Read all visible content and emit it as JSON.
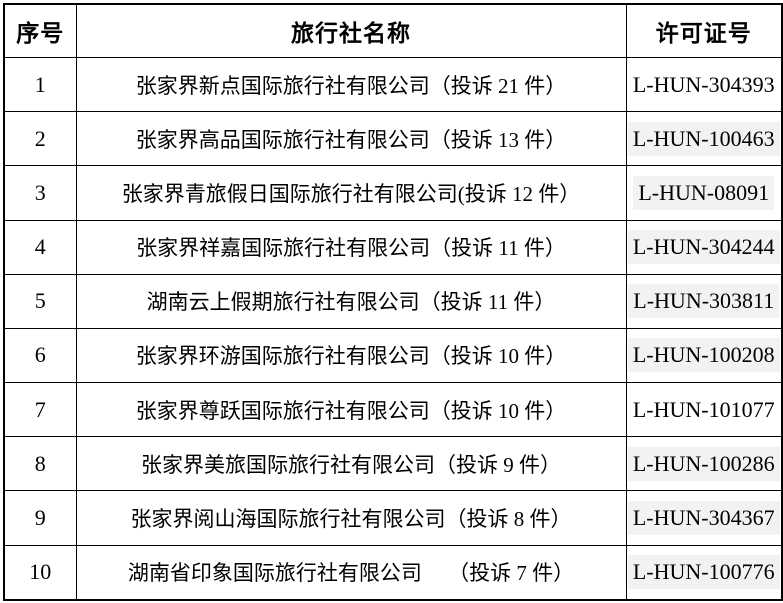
{
  "colors": {
    "border": "#000000",
    "text": "#000000",
    "highlight_bg": "#f2f2f2",
    "page_bg": "#ffffff"
  },
  "table": {
    "headers": {
      "no": "序号",
      "name": "旅行社名称",
      "license": "许可证号"
    },
    "rows": [
      {
        "no": "1",
        "name": "张家界新点国际旅行社有限公司（投诉 21 件）",
        "license": "L-HUN-304393",
        "highlight": false
      },
      {
        "no": "2",
        "name": "张家界高品国际旅行社有限公司（投诉 13 件）",
        "license": "L-HUN-100463",
        "highlight": true
      },
      {
        "no": "3",
        "name": "张家界青旅假日国际旅行社有限公司(投诉 12 件）",
        "license": "L-HUN-08091",
        "highlight": true
      },
      {
        "no": "4",
        "name": "张家界祥嘉国际旅行社有限公司（投诉 11 件）",
        "license": "L-HUN-304244",
        "highlight": true
      },
      {
        "no": "5",
        "name": "湖南云上假期旅行社有限公司（投诉 11 件）",
        "license": "L-HUN-303811",
        "highlight": true
      },
      {
        "no": "6",
        "name": "张家界环游国际旅行社有限公司（投诉 10 件）",
        "license": "L-HUN-100208",
        "highlight": true
      },
      {
        "no": "7",
        "name": "张家界尊跃国际旅行社有限公司（投诉 10 件）",
        "license": "L-HUN-101077",
        "highlight": false
      },
      {
        "no": "8",
        "name": "张家界美旅国际旅行社有限公司（投诉 9 件）",
        "license": "L-HUN-100286",
        "highlight": true
      },
      {
        "no": "9",
        "name": "张家界阅山海国际旅行社有限公司（投诉 8 件）",
        "license": "L-HUN-304367",
        "highlight": true
      },
      {
        "no": "10",
        "name": "湖南省印象国际旅行社有限公司　 （投诉 7 件）",
        "license": "L-HUN-100776",
        "highlight": true
      }
    ]
  }
}
